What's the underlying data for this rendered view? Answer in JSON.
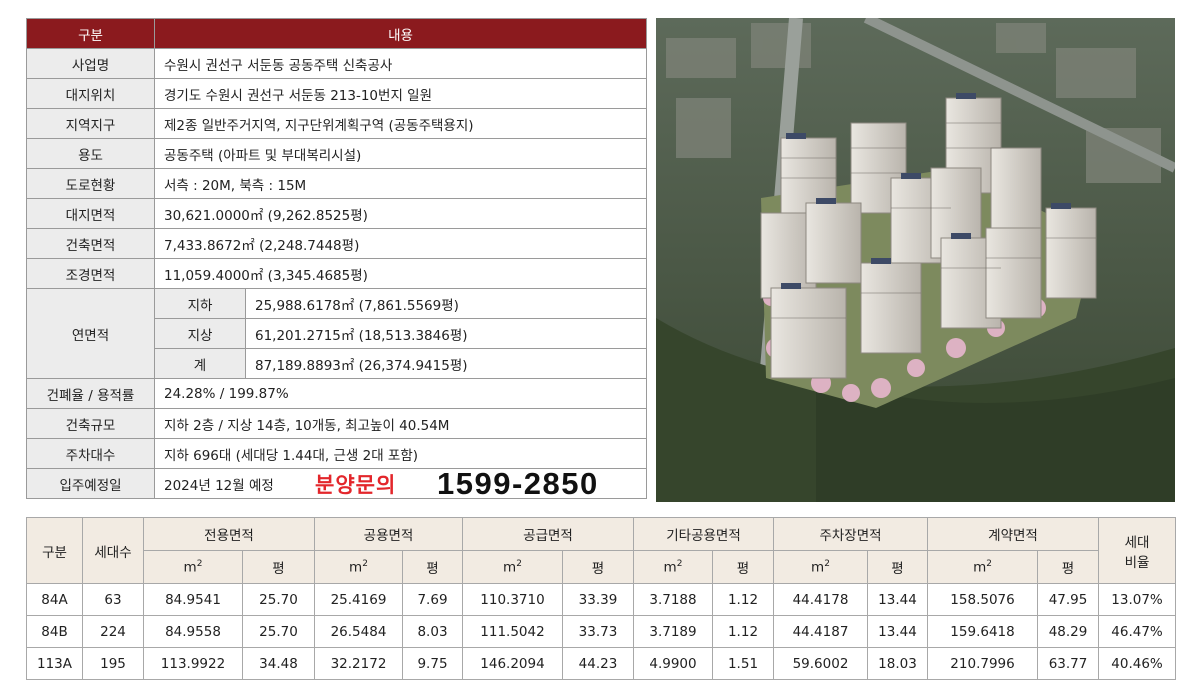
{
  "info": {
    "header": {
      "col1": "구분",
      "col2": "내용"
    },
    "rows": [
      {
        "label": "사업명",
        "value": "수원시 권선구 서둔동 공동주택 신축공사"
      },
      {
        "label": "대지위치",
        "value": "경기도 수원시 권선구 서둔동 213-10번지 일원"
      },
      {
        "label": "지역지구",
        "value": "제2종 일반주거지역, 지구단위계획구역 (공동주택용지)"
      },
      {
        "label": "용도",
        "value": "공동주택 (아파트 및 부대복리시설)"
      },
      {
        "label": "도로현황",
        "value": "서측 : 20M, 북측 : 15M"
      },
      {
        "label": "대지면적",
        "value": "30,621.0000㎡ (9,262.8525평)"
      },
      {
        "label": "건축면적",
        "value": "7,433.8672㎡ (2,248.7448평)"
      },
      {
        "label": "조경면적",
        "value": "11,059.4000㎡ (3,345.4685평)"
      }
    ],
    "floor_area": {
      "label": "연면적",
      "rows": [
        {
          "sub": "지하",
          "value": "25,988.6178㎡ (7,861.5569평)"
        },
        {
          "sub": "지상",
          "value": "61,201.2715㎡ (18,513.3846평)"
        },
        {
          "sub": "계",
          "value": "87,189.8893㎡ (26,374.9415평)"
        }
      ]
    },
    "rows2": [
      {
        "label": "건폐율 / 용적률",
        "value": "24.28% / 199.87%"
      },
      {
        "label": "건축규모",
        "value": "지하 2층 / 지상 14층, 10개동, 최고높이 40.54M"
      },
      {
        "label": "주차대수",
        "value": "지하 696대 (세대당 1.44대, 근생 2대 포함)"
      }
    ],
    "move_in": {
      "label": "입주예정일",
      "value": "2024년 12월 예정"
    }
  },
  "inquiry": {
    "label": "분양문의",
    "phone": "1599-2850"
  },
  "area_table": {
    "col_type": "구분",
    "col_units": "세대수",
    "groups": [
      "전용면적",
      "공용면적",
      "공급면적",
      "기타공용면적",
      "주차장면적",
      "계약면적"
    ],
    "col_ratio_1": "세대",
    "col_ratio_2": "비율",
    "unit_m": "m",
    "unit_m_sup": "2",
    "unit_py": "평",
    "rows": [
      {
        "type": "84A",
        "units": "63",
        "cells": [
          "84.9541",
          "25.70",
          "25.4169",
          "7.69",
          "110.3710",
          "33.39",
          "3.7188",
          "1.12",
          "44.4178",
          "13.44",
          "158.5076",
          "47.95"
        ],
        "ratio": "13.07%"
      },
      {
        "type": "84B",
        "units": "224",
        "cells": [
          "84.9558",
          "25.70",
          "26.5484",
          "8.03",
          "111.5042",
          "33.73",
          "3.7189",
          "1.12",
          "44.4187",
          "13.44",
          "159.6418",
          "48.29"
        ],
        "ratio": "46.47%"
      },
      {
        "type": "113A",
        "units": "195",
        "cells": [
          "113.9922",
          "34.48",
          "32.2172",
          "9.75",
          "146.2094",
          "44.23",
          "4.9900",
          "1.51",
          "59.6002",
          "18.03",
          "210.7996",
          "63.77"
        ],
        "ratio": "40.46%"
      }
    ]
  },
  "colors": {
    "header_red": "#8b1a1e",
    "label_gray": "#ececec",
    "area_header": "#f2ebe2",
    "inquiry_red": "#e3262b"
  }
}
